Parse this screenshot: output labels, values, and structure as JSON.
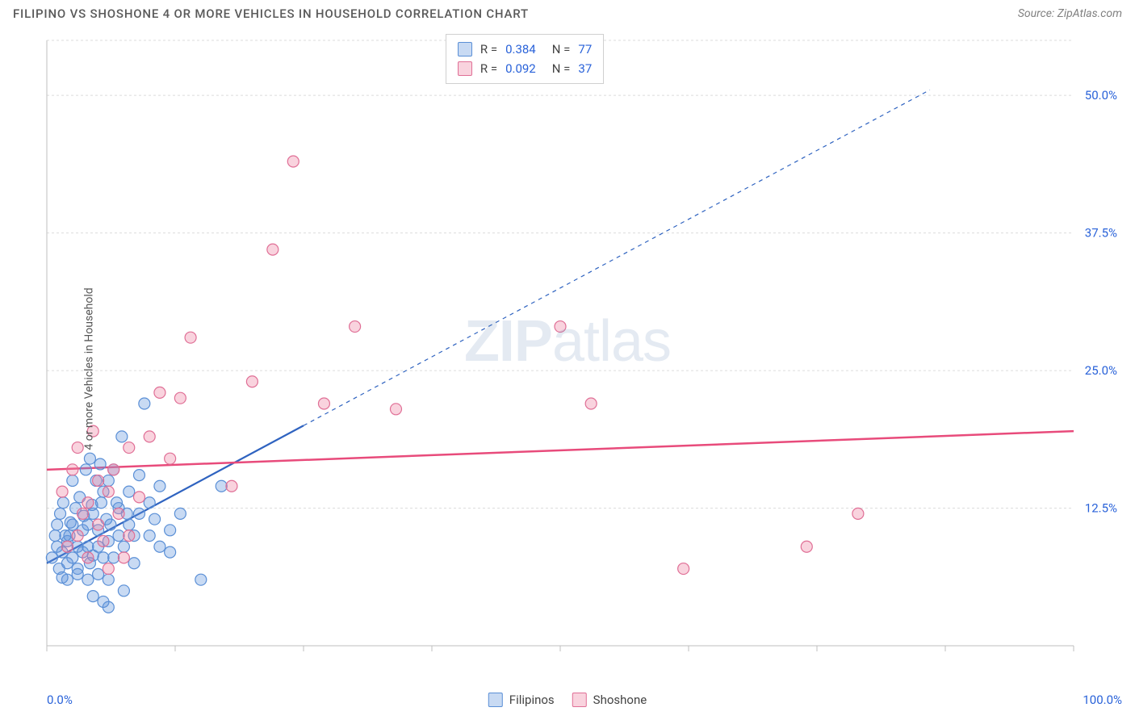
{
  "title": "FILIPINO VS SHOSHONE 4 OR MORE VEHICLES IN HOUSEHOLD CORRELATION CHART",
  "source": "Source: ZipAtlas.com",
  "ylabel": "4 or more Vehicles in Household",
  "watermark_a": "ZIP",
  "watermark_b": "atlas",
  "chart": {
    "type": "scatter",
    "xlim": [
      0,
      100
    ],
    "ylim": [
      0,
      55
    ],
    "y_gridlines": [
      12.5,
      25.0,
      37.5,
      50.0,
      55.0
    ],
    "y_ticklabels": [
      "12.5%",
      "25.0%",
      "37.5%",
      "50.0%"
    ],
    "x_ticks": [
      0,
      12.5,
      25,
      37.5,
      50,
      62.5,
      75,
      87.5,
      100
    ],
    "x_min_label": "0.0%",
    "x_max_label": "100.0%",
    "background_color": "#ffffff",
    "grid_color": "#dcdcdc",
    "axis_color": "#bfbfbf",
    "marker_radius": 7,
    "series": [
      {
        "name": "Filipinos",
        "fill": "rgba(96,150,222,0.35)",
        "stroke": "#5a8fd6",
        "r_value": "0.384",
        "n_value": "77",
        "trend": {
          "x1": 0,
          "y1": 7.5,
          "x2": 25,
          "y2": 20,
          "stroke": "#2f63c0",
          "width": 2.2,
          "dash": "none",
          "ext_x2": 86,
          "ext_y2": 50.5,
          "ext_dash": "5,5",
          "ext_width": 1.2
        },
        "points": [
          [
            0.5,
            8
          ],
          [
            1,
            9
          ],
          [
            1.2,
            7
          ],
          [
            1.5,
            8.5
          ],
          [
            2,
            9.5
          ],
          [
            2,
            7.5
          ],
          [
            2.2,
            10
          ],
          [
            2.5,
            8
          ],
          [
            2.5,
            11
          ],
          [
            3,
            9
          ],
          [
            3,
            7
          ],
          [
            3.5,
            10.5
          ],
          [
            3.5,
            8.5
          ],
          [
            4,
            9
          ],
          [
            4,
            11
          ],
          [
            4.2,
            7.5
          ],
          [
            4.5,
            8.2
          ],
          [
            4.5,
            12
          ],
          [
            5,
            9
          ],
          [
            5,
            10.5
          ],
          [
            5.3,
            13
          ],
          [
            5.5,
            8
          ],
          [
            5.5,
            14
          ],
          [
            6,
            9.5
          ],
          [
            6,
            15
          ],
          [
            6.2,
            11
          ],
          [
            6.5,
            8
          ],
          [
            6.5,
            16
          ],
          [
            7,
            10
          ],
          [
            7,
            12.5
          ],
          [
            7.3,
            19
          ],
          [
            7.5,
            9
          ],
          [
            8,
            11
          ],
          [
            8,
            14
          ],
          [
            8.5,
            10
          ],
          [
            8.5,
            7.5
          ],
          [
            9,
            15.5
          ],
          [
            9,
            12
          ],
          [
            9.5,
            22
          ],
          [
            10,
            10
          ],
          [
            10,
            13
          ],
          [
            10.5,
            11.5
          ],
          [
            11,
            9
          ],
          [
            11,
            14.5
          ],
          [
            12,
            10.5
          ],
          [
            12,
            8.5
          ],
          [
            13,
            12
          ],
          [
            15,
            6
          ],
          [
            17,
            14.5
          ],
          [
            3,
            6.5
          ],
          [
            4,
            6
          ],
          [
            5,
            6.5
          ],
          [
            6,
            6
          ],
          [
            2,
            6
          ],
          [
            1.5,
            6.2
          ],
          [
            2.8,
            12.5
          ],
          [
            3.2,
            13.5
          ],
          [
            4.8,
            15
          ],
          [
            5.2,
            16.5
          ],
          [
            2.5,
            15
          ],
          [
            3.8,
            16
          ],
          [
            4.2,
            17
          ],
          [
            1.8,
            10
          ],
          [
            2.3,
            11.2
          ],
          [
            3.6,
            11.8
          ],
          [
            4.4,
            12.8
          ],
          [
            5.8,
            11.5
          ],
          [
            6.8,
            13
          ],
          [
            7.8,
            12
          ],
          [
            1,
            11
          ],
          [
            1.3,
            12
          ],
          [
            0.8,
            10
          ],
          [
            1.6,
            13
          ],
          [
            6,
            3.5
          ],
          [
            5.5,
            4
          ],
          [
            4.5,
            4.5
          ],
          [
            7.5,
            5
          ]
        ]
      },
      {
        "name": "Shoshone",
        "fill": "rgba(238,130,160,0.35)",
        "stroke": "#e06f96",
        "r_value": "0.092",
        "n_value": "37",
        "trend": {
          "x1": 0,
          "y1": 16,
          "x2": 100,
          "y2": 19.5,
          "stroke": "#e84b7b",
          "width": 2.5,
          "dash": "none"
        },
        "points": [
          [
            2,
            9
          ],
          [
            3,
            10
          ],
          [
            3.5,
            12
          ],
          [
            4,
            13
          ],
          [
            4,
            8
          ],
          [
            5,
            11
          ],
          [
            5,
            15
          ],
          [
            5.5,
            9.5
          ],
          [
            6,
            14
          ],
          [
            6.5,
            16
          ],
          [
            7,
            12
          ],
          [
            8,
            10
          ],
          [
            8,
            18
          ],
          [
            9,
            13.5
          ],
          [
            10,
            19
          ],
          [
            11,
            23
          ],
          [
            12,
            17
          ],
          [
            13,
            22.5
          ],
          [
            14,
            28
          ],
          [
            18,
            14.5
          ],
          [
            20,
            24
          ],
          [
            22,
            36
          ],
          [
            24,
            44
          ],
          [
            27,
            22
          ],
          [
            30,
            29
          ],
          [
            34,
            21.5
          ],
          [
            50,
            29
          ],
          [
            53,
            22
          ],
          [
            62,
            7
          ],
          [
            74,
            9
          ],
          [
            79,
            12
          ],
          [
            3,
            18
          ],
          [
            4.5,
            19.5
          ],
          [
            2.5,
            16
          ],
          [
            1.5,
            14
          ],
          [
            6,
            7
          ],
          [
            7.5,
            8
          ]
        ]
      }
    ]
  },
  "legend_bottom": [
    {
      "name": "Filipinos"
    },
    {
      "name": "Shoshone"
    }
  ]
}
